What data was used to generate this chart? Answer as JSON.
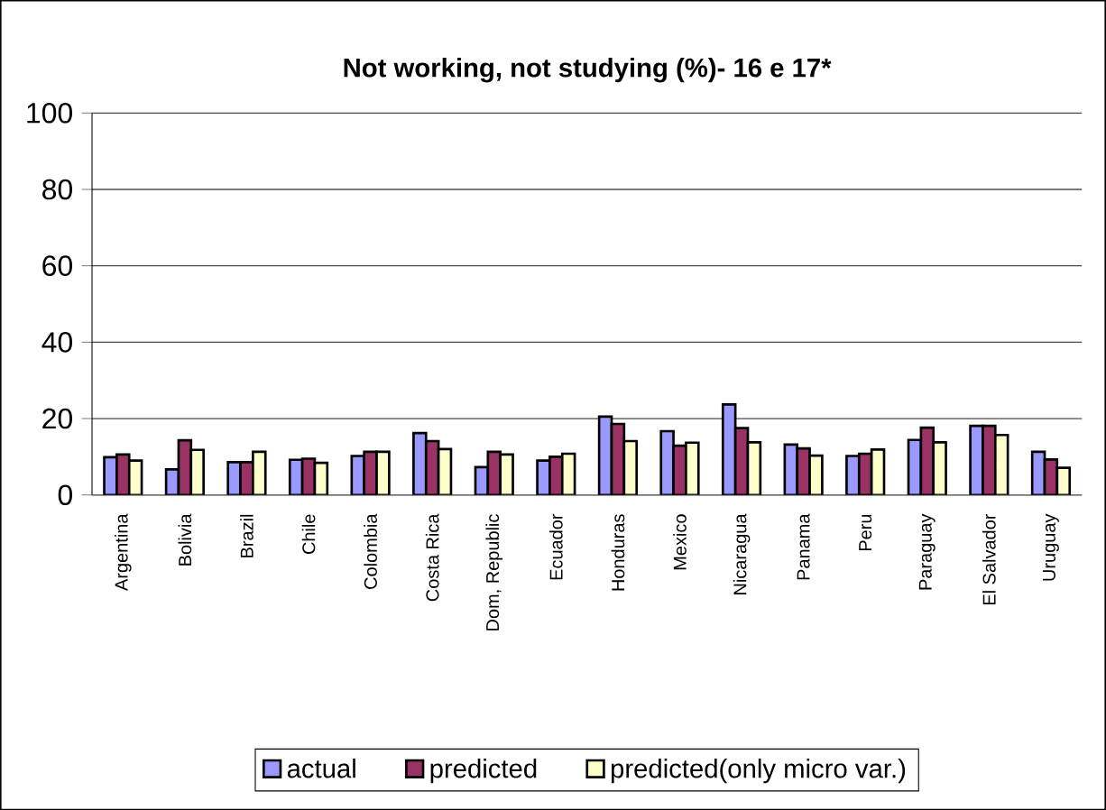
{
  "chart_data": {
    "type": "bar",
    "title": "Not working, not studying (%)- 16 e 17*",
    "categories": [
      "Argentina",
      "Bolivia",
      "Brazil",
      "Chile",
      "Colombia",
      "Costa Rica",
      "Dom, Republic",
      "Ecuador",
      "Honduras",
      "Mexico",
      "Nicaragua",
      "Panama",
      "Peru",
      "Paraguay",
      "El Salvador",
      "Uruguay"
    ],
    "series": [
      {
        "name": "actual",
        "color": "#9999ff",
        "values": [
          9.9,
          6.7,
          8.6,
          9.2,
          10.2,
          16.2,
          7.3,
          9,
          20.5,
          16.7,
          23.7,
          13.2,
          10.2,
          14.4,
          18.1,
          11.3
        ]
      },
      {
        "name": "predicted",
        "color": "#993366",
        "values": [
          10.6,
          14.3,
          8.6,
          9.5,
          11.3,
          14.1,
          11.3,
          10,
          18.6,
          12.9,
          17.5,
          12.2,
          10.8,
          17.6,
          18.1,
          9.3
        ]
      },
      {
        "name": "predicted(only micro var.)",
        "color": "#ffffcc",
        "values": [
          9,
          11.8,
          11.3,
          8.4,
          11.3,
          12,
          10.6,
          10.8,
          14.1,
          13.7,
          13.8,
          10.3,
          11.9,
          13.8,
          15.7,
          7.1
        ]
      }
    ],
    "ylim": [
      0,
      100
    ],
    "yticks": [
      0,
      20,
      40,
      60,
      80,
      100
    ],
    "grid": "y",
    "legend": "bottom"
  }
}
